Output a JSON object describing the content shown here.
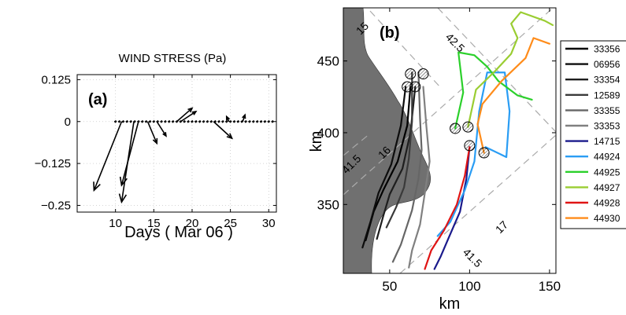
{
  "chart_data": [
    {
      "type": "quiver",
      "panel_label": "(a)",
      "title": "WIND STRESS  (Pa)",
      "xlabel": "Days  ( Mar 06 )",
      "ylabel": "",
      "xlim": [
        5,
        31
      ],
      "ylim": [
        -0.27,
        0.14
      ],
      "xticks": [
        10,
        15,
        20,
        25,
        30
      ],
      "xtick_labels": [
        "10",
        "15",
        "20",
        "25",
        "30"
      ],
      "yticks": [
        0.125,
        0,
        -0.125,
        -0.25
      ],
      "ytick_labels": [
        "0.125",
        "0",
        "−0.125",
        "−0.25"
      ],
      "grid": true,
      "vectors": [
        {
          "x": 10.8,
          "u": -3.6,
          "v": -0.205
        },
        {
          "x": 12.4,
          "u": -1.6,
          "v": -0.24
        },
        {
          "x": 13.0,
          "u": -2.2,
          "v": -0.19
        },
        {
          "x": 14.2,
          "u": 1.2,
          "v": -0.065
        },
        {
          "x": 15.4,
          "u": 1.2,
          "v": -0.043
        },
        {
          "x": 18.0,
          "u": 2.0,
          "v": 0.04
        },
        {
          "x": 18.5,
          "u": 2.0,
          "v": 0.03
        },
        {
          "x": 22.8,
          "u": 2.4,
          "v": -0.05
        },
        {
          "x": 24.8,
          "u": -0.3,
          "v": 0.015
        },
        {
          "x": 26.6,
          "u": 0.3,
          "v": 0.02
        }
      ]
    },
    {
      "type": "trajectory_map",
      "panel_label": "(b)",
      "xlabel": "km",
      "ylabel": "km",
      "xlim": [
        21,
        154
      ],
      "ylim": [
        302,
        487
      ],
      "xticks": [
        50,
        100,
        150
      ],
      "xtick_labels": [
        "50",
        "100",
        "150"
      ],
      "yticks": [
        350,
        400,
        450
      ],
      "ytick_labels": [
        "350",
        "400",
        "450"
      ],
      "contour_labels": [
        "15",
        "42.5",
        "16",
        "41.5",
        "17",
        "41.5"
      ],
      "land_color": "#707070",
      "legend_position": "right",
      "series": [
        {
          "name": "33356",
          "color": "#000000",
          "points": [
            [
              63,
              432
            ],
            [
              61,
              405
            ],
            [
              55,
              380
            ],
            [
              46,
              360
            ],
            [
              40,
              345
            ],
            [
              35,
              325
            ]
          ]
        },
        {
          "name": "06956",
          "color": "#0d0d0d",
          "points": [
            [
              60,
              432
            ],
            [
              57,
              405
            ],
            [
              51,
              378
            ],
            [
              43,
              358
            ],
            [
              38,
              338
            ],
            [
              33,
              320
            ]
          ]
        },
        {
          "name": "33354",
          "color": "#1e1e1e",
          "points": [
            [
              66,
              432
            ],
            [
              63,
              400
            ],
            [
              58,
              375
            ],
            [
              50,
              357
            ],
            [
              46,
              342
            ],
            [
              42,
              326
            ]
          ]
        },
        {
          "name": "12589",
          "color": "#3a3a3a",
          "points": [
            [
              64,
              442
            ],
            [
              64,
              408
            ],
            [
              62,
              382
            ],
            [
              59,
              362
            ],
            [
              54,
              348
            ],
            [
              48,
              334
            ]
          ]
        },
        {
          "name": "33355",
          "color": "#666666",
          "points": [
            [
              68,
              442
            ],
            [
              69,
              410
            ],
            [
              70,
              388
            ],
            [
              68,
              368
            ],
            [
              64,
              346
            ],
            [
              57,
              322
            ],
            [
              52,
              310
            ]
          ]
        },
        {
          "name": "33353",
          "color": "#808080",
          "points": [
            [
              71,
              432
            ],
            [
              73,
              404
            ],
            [
              75,
              380
            ],
            [
              72,
              358
            ],
            [
              69,
              336
            ],
            [
              64,
              318
            ],
            [
              62,
              306
            ]
          ]
        },
        {
          "name": "14715",
          "color": "#1a1a8c",
          "points": [
            [
              100,
              390
            ],
            [
              98,
              368
            ],
            [
              94,
              345
            ],
            [
              87,
              327
            ],
            [
              82,
              314
            ],
            [
              78,
              305
            ]
          ]
        },
        {
          "name": "44924",
          "color": "#2a9df4",
          "points": [
            [
              110,
              390
            ],
            [
              123,
              383
            ],
            [
              125,
              415
            ],
            [
              122,
              442
            ],
            [
              111,
              442
            ],
            [
              106,
              415
            ],
            [
              103,
              380
            ],
            [
              97,
              360
            ],
            [
              88,
              338
            ],
            [
              80,
              328
            ]
          ]
        },
        {
          "name": "44925",
          "color": "#2bd02b",
          "points": [
            [
              91,
              403
            ],
            [
              96,
              428
            ],
            [
              93,
              456
            ],
            [
              103,
              454
            ],
            [
              111,
              446
            ],
            [
              118,
              436
            ],
            [
              130,
              426
            ],
            [
              139,
              423
            ]
          ]
        },
        {
          "name": "44927",
          "color": "#9acd32",
          "points": [
            [
              99,
              404
            ],
            [
              104,
              430
            ],
            [
              116,
              443
            ],
            [
              126,
              455
            ],
            [
              130,
              466
            ],
            [
              126,
              476
            ],
            [
              132,
              484
            ],
            [
              147,
              478
            ],
            [
              152,
              475
            ]
          ]
        },
        {
          "name": "44928",
          "color": "#e01414",
          "points": [
            [
              100,
              390
            ],
            [
              97,
              370
            ],
            [
              92,
              350
            ],
            [
              84,
              332
            ],
            [
              76,
              318
            ],
            [
              72,
              305
            ]
          ]
        },
        {
          "name": "44930",
          "color": "#ff8c1a",
          "points": [
            [
              109,
              386
            ],
            [
              105,
              406
            ],
            [
              108,
              420
            ],
            [
              120,
              436
            ],
            [
              135,
              452
            ],
            [
              140,
              466
            ],
            [
              150,
              462
            ]
          ]
        }
      ],
      "start_markers": [
        [
          61,
          432
        ],
        [
          66,
          432
        ],
        [
          63,
          441
        ],
        [
          71,
          441
        ],
        [
          91,
          403
        ],
        [
          99,
          404
        ],
        [
          100,
          391
        ],
        [
          109,
          386
        ]
      ]
    }
  ]
}
